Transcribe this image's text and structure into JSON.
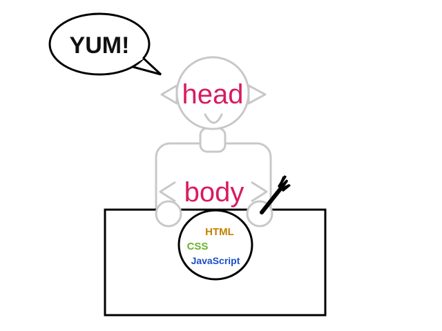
{
  "speech_bubble": {
    "text": "YUM!"
  },
  "figure": {
    "head_label": "head",
    "body_label": "body",
    "label_color": "#d81b60",
    "outline_color": "#c8c8c8"
  },
  "plate": {
    "items": [
      {
        "text": "HTML",
        "color": "#c47f00"
      },
      {
        "text": "CSS",
        "color": "#6ab22a"
      },
      {
        "text": "JavaScript",
        "color": "#1a4ec7"
      }
    ]
  },
  "fork": {
    "icon": "fork-icon",
    "color": "#000000"
  }
}
